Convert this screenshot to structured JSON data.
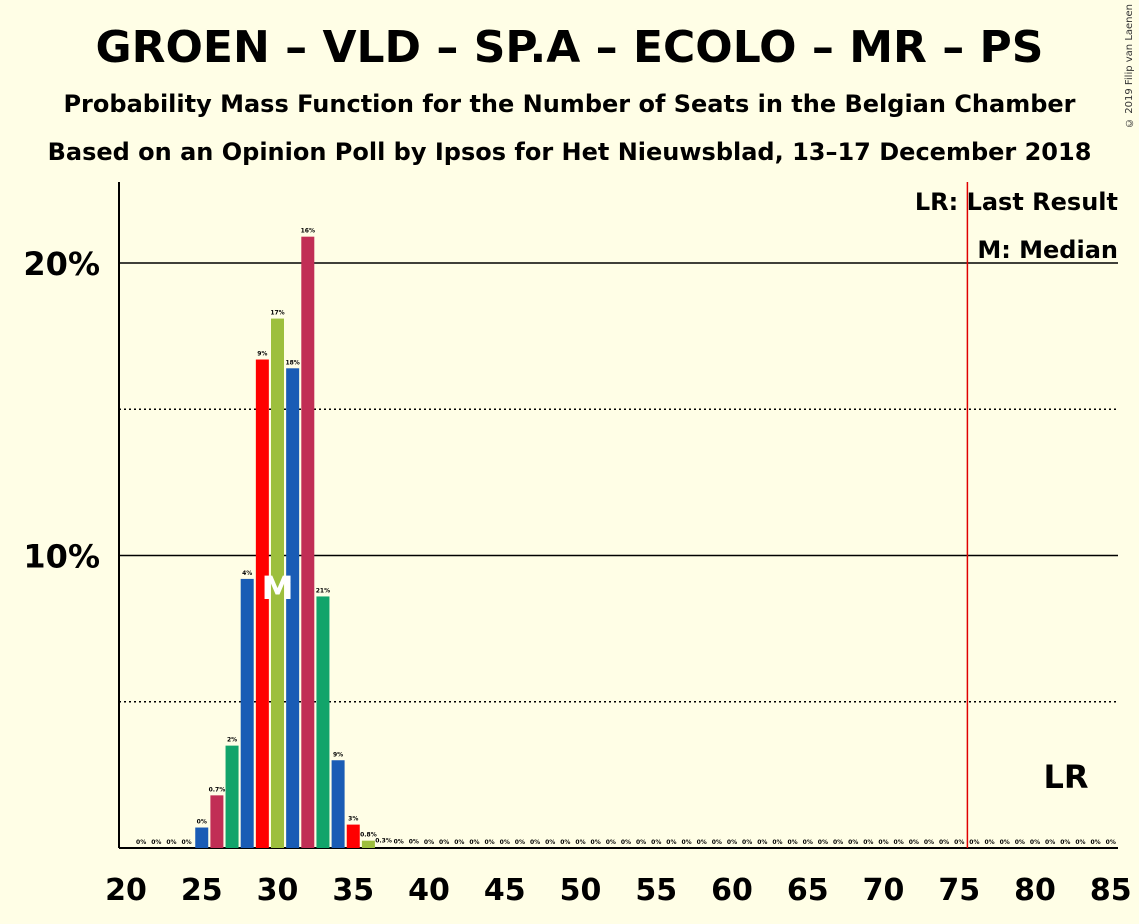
{
  "title": "GROEN – VLD – SP.A – ECOLO – MR – PS",
  "subtitle1": "Probability Mass Function for the Number of Seats in the Belgian Chamber",
  "subtitle2": "Based on an Opinion Poll by Ipsos for Het Nieuwsblad, 13–17 December 2018",
  "copyright": "© 2019 Filip van Laenen",
  "chart_data": {
    "type": "bar",
    "x": [
      20,
      21,
      22,
      23,
      24,
      25,
      26,
      27,
      28,
      29,
      30,
      31,
      32,
      33,
      34,
      35,
      36,
      37,
      38,
      39,
      40,
      41,
      42,
      43,
      44,
      45,
      46,
      47,
      48,
      49,
      50,
      51,
      52,
      53,
      54,
      55,
      56,
      57,
      58,
      59,
      60,
      61,
      62,
      63,
      64,
      65,
      66,
      67,
      68,
      69,
      70,
      71,
      72,
      73,
      74,
      75,
      76,
      77,
      78,
      79,
      80,
      81,
      82,
      83,
      84,
      85
    ],
    "values": [
      0,
      0,
      0,
      0,
      0,
      0.7,
      1.8,
      3.5,
      9.2,
      16.7,
      18.1,
      16.4,
      20.9,
      8.6,
      3.0,
      0.8,
      0.25,
      0.05,
      0.02,
      0.01,
      0,
      0,
      0,
      0,
      0,
      0,
      0,
      0,
      0,
      0,
      0,
      0,
      0,
      0,
      0,
      0,
      0,
      0,
      0,
      0,
      0,
      0,
      0,
      0,
      0,
      0,
      0,
      0,
      0,
      0,
      0,
      0,
      0,
      0,
      0,
      0,
      0,
      0,
      0,
      0,
      0,
      0,
      0,
      0,
      0,
      0
    ],
    "labels": [
      "0%",
      "0%",
      "0%",
      "0%",
      "0%",
      "0.7%",
      "2%",
      "4%",
      "9%",
      "17%",
      "18%",
      "16%",
      "21%",
      "9%",
      "3%",
      "0.8%",
      "0.3%",
      "0%",
      "0%",
      "0%",
      "0%",
      "0%",
      "0%",
      "0%",
      "0%",
      "0%",
      "0%",
      "0%",
      "0%",
      "0%",
      "0%",
      "0%",
      "0%",
      "0%",
      "0%",
      "0%",
      "0%",
      "0%",
      "0%",
      "0%",
      "0%",
      "0%",
      "0%",
      "0%",
      "0%",
      "0%",
      "0%",
      "0%",
      "0%",
      "0%",
      "0%",
      "0%",
      "0%",
      "0%",
      "0%",
      "0%",
      "0%",
      "0%",
      "0%",
      "0%",
      "0%",
      "0%",
      "0%",
      "0%",
      "0%"
    ],
    "label_start": 21,
    "colors": [
      "#1A5CB5",
      "#C12E55",
      "#12A46A",
      "#1A5CB5",
      "#FF0000",
      "#9DBF3D",
      "#1A5CB5",
      "#C12E55",
      "#12A46A",
      "#1A5CB5",
      "#FF0000",
      "#9DBF3D"
    ],
    "color_start": 25,
    "median": 30,
    "median_label": "M",
    "last_result": 76,
    "last_result_label": "LR",
    "xlim": [
      20,
      85
    ],
    "ylim": [
      0,
      22.7
    ],
    "yticks": [
      {
        "value": 10,
        "label": "10%"
      },
      {
        "value": 20,
        "label": "20%"
      }
    ],
    "dotted_lines": [
      5,
      15
    ],
    "solid_lines": [
      10,
      20
    ],
    "xticks": [
      20,
      25,
      30,
      35,
      40,
      45,
      50,
      55,
      60,
      65,
      70,
      75,
      80,
      85
    ],
    "legend": [
      "LR: Last Result",
      "M: Median"
    ]
  }
}
